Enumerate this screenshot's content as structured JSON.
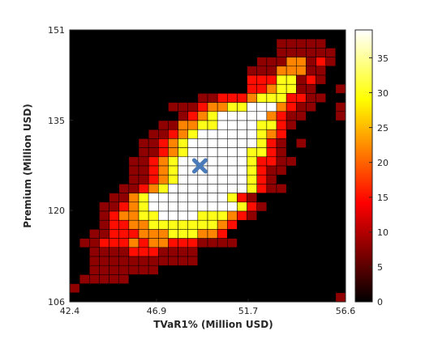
{
  "chart_data": {
    "type": "heatmap",
    "title": "",
    "xlabel": "TVaR1% (Million USD)",
    "ylabel": "Premium (Million USD)",
    "xlim": [
      42.4,
      56.6
    ],
    "ylim": [
      106,
      151
    ],
    "x_ticks": [
      "42.4",
      "46.9",
      "51.7",
      "56.6"
    ],
    "y_ticks": [
      "106",
      "120",
      "135",
      "151"
    ],
    "colorbar": {
      "range": [
        0,
        39
      ],
      "ticks": [
        "0",
        "5",
        "10",
        "15",
        "20",
        "25",
        "30",
        "35"
      ],
      "colormap": "hot"
    },
    "grid_shape": [
      30,
      28
    ],
    "heatmap_rows_top_to_bottom": [
      "............................",
      ".....................22222..",
      ".....................222222.",
      "...................22244232.",
      "..................22244422..",
      "..................33355232..",
      "..................3345522..2",
      ".............2233345553322..",
      "..........222344556664322..2",
      "...........2345666664322...2",
      ".........22445566665532.....",
      "........22345666666543......",
      ".......223456666666532.2....",
      ".......223456666665532......",
      "......22345666666653322.....",
      "......2234566666665322......",
      "......223456666666532.......",
      ".....22345666666665322......",
      "....224566666666532.........",
      "...22345666666666532........",
      "...2344556666555432.........",
      "...23344555555543...........",
      "..22333444555443............",
      ".2233343443332222...........",
      "..22223332222...............",
      "..22222222222...............",
      "..2222222...................",
      ".22222......................",
      "2...........................",
      "...........................2"
    ],
    "heatmap_level_values": {
      "2": 8,
      "3": 15,
      "4": 22,
      "5": 30,
      "6": 39
    },
    "marker": {
      "shape": "x",
      "x": 49.1,
      "y": 128.5,
      "color": "#4a7ab8"
    }
  }
}
